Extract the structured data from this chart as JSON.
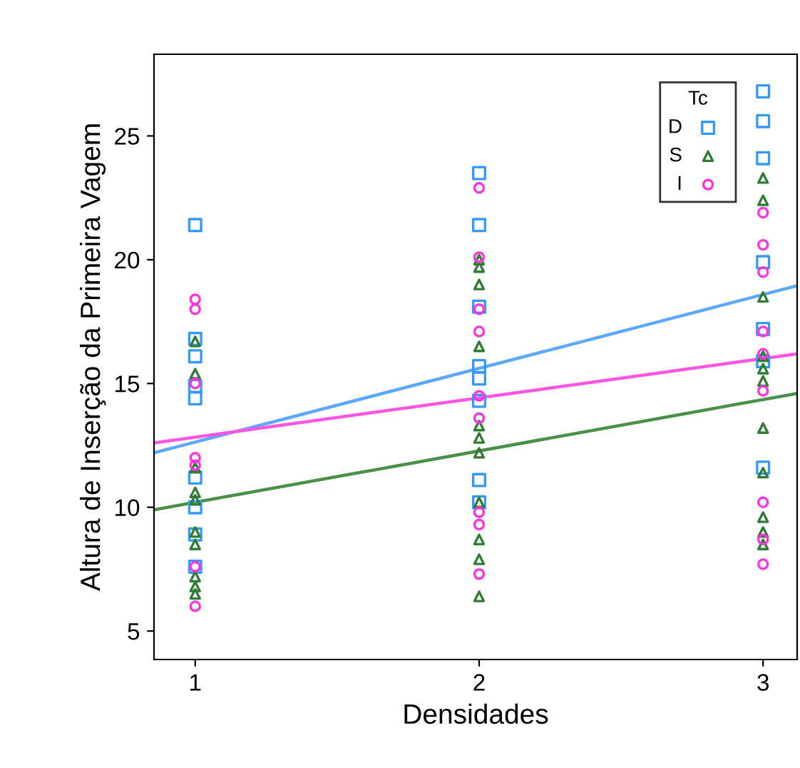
{
  "chart_data": {
    "type": "scatter",
    "xlabel": "Densidades",
    "ylabel": "Altura de Inserção da Primeira Vagem",
    "legend_title": "Tc",
    "legend": "top right",
    "grid": false,
    "xlim": [
      0.855,
      3.12
    ],
    "ylim": [
      3.85,
      28.3
    ],
    "xticks": [
      1,
      2,
      3
    ],
    "yticks": [
      5,
      10,
      15,
      20,
      25
    ],
    "series": [
      {
        "name": "D",
        "color": "#3399ff",
        "marker": "square",
        "x": [
          1,
          1,
          1,
          1,
          1,
          1,
          1,
          1,
          1,
          2,
          2,
          2,
          2,
          2,
          2,
          2,
          2,
          3,
          3,
          3,
          3,
          3,
          3,
          3
        ],
        "values": [
          21.4,
          16.8,
          16.1,
          14.9,
          14.4,
          11.2,
          10.0,
          8.9,
          7.6,
          23.5,
          21.4,
          18.1,
          15.7,
          15.2,
          14.3,
          11.1,
          10.2,
          26.8,
          25.6,
          24.1,
          19.9,
          17.2,
          15.9,
          11.6
        ]
      },
      {
        "name": "S",
        "color": "#2e7d32",
        "marker": "triangle",
        "x": [
          1,
          1,
          1,
          1,
          1,
          1,
          1,
          1,
          1,
          1,
          2,
          2,
          2,
          2,
          2,
          2,
          2,
          2,
          2,
          2,
          2,
          3,
          3,
          3,
          3,
          3,
          3,
          3,
          3,
          3,
          3,
          3
        ],
        "values": [
          16.7,
          15.4,
          11.6,
          10.6,
          10.3,
          9.0,
          8.5,
          7.2,
          6.8,
          6.5,
          20.0,
          19.7,
          19.0,
          16.5,
          13.3,
          12.8,
          12.2,
          10.2,
          8.7,
          7.9,
          6.4,
          23.3,
          22.4,
          18.5,
          16.1,
          15.6,
          15.1,
          13.2,
          11.4,
          9.6,
          9.0,
          8.5
        ]
      },
      {
        "name": "I",
        "color": "#ff33dd",
        "marker": "circle",
        "x": [
          1,
          1,
          1,
          1,
          1,
          1,
          1,
          2,
          2,
          2,
          2,
          2,
          2,
          2,
          2,
          2,
          3,
          3,
          3,
          3,
          3,
          3,
          3,
          3,
          3
        ],
        "values": [
          18.4,
          18.0,
          15.0,
          12.0,
          11.7,
          7.6,
          6.0,
          22.9,
          20.1,
          18.0,
          17.1,
          14.5,
          13.6,
          9.8,
          9.3,
          7.3,
          21.9,
          20.6,
          19.5,
          17.1,
          16.2,
          14.7,
          10.2,
          8.7,
          7.7
        ]
      },
      {
        "type": "line",
        "color": "#5aa9ff",
        "x": [
          0.855,
          3.12
        ],
        "values": [
          12.2,
          18.95
        ]
      },
      {
        "type": "line",
        "color": "#ff55e0",
        "x": [
          0.855,
          3.12
        ],
        "values": [
          12.6,
          16.2
        ]
      },
      {
        "type": "line",
        "color": "#4a8f4a",
        "x": [
          0.855,
          3.12
        ],
        "values": [
          9.9,
          14.6
        ]
      }
    ]
  }
}
